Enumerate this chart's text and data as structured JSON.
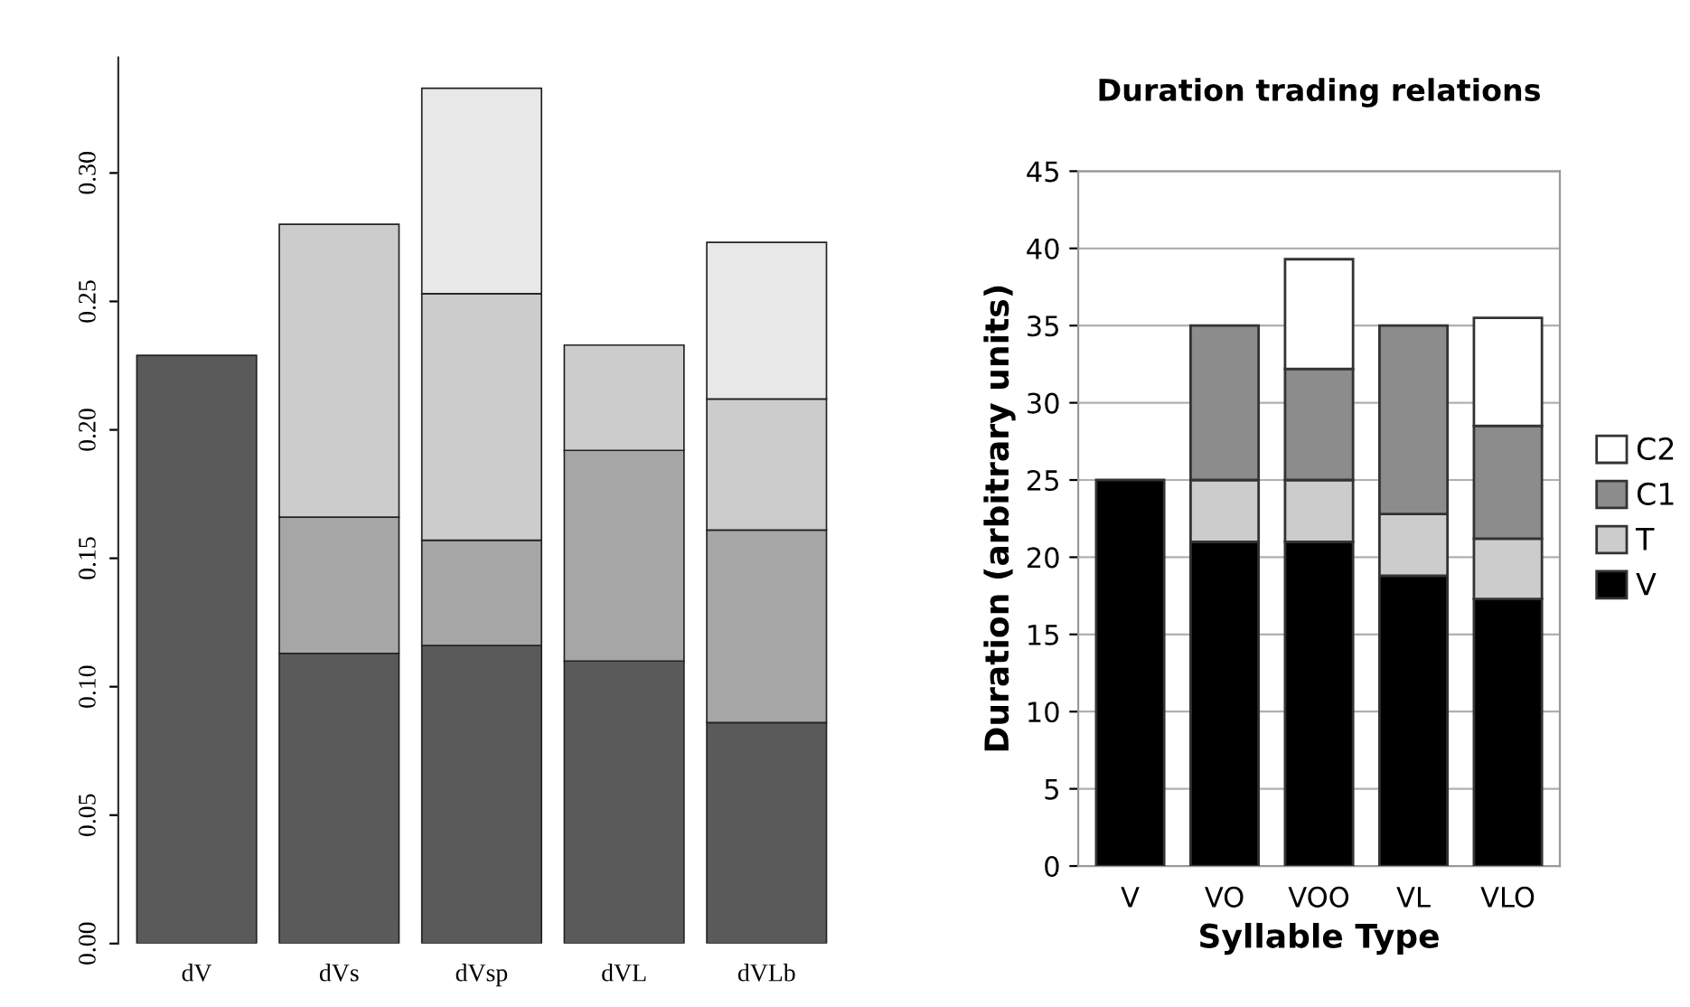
{
  "chart_data": [
    {
      "type": "bar",
      "stacked": true,
      "categories": [
        "dV",
        "dVs",
        "dVsp",
        "dVL",
        "dVLb"
      ],
      "series": [
        {
          "color": "#5a5a5a",
          "values": [
            0.229,
            0.113,
            0.116,
            0.11,
            0.086
          ]
        },
        {
          "color": "#a6a6a6",
          "values": [
            null,
            0.053,
            0.041,
            0.082,
            0.075
          ]
        },
        {
          "color": "#cccccc",
          "values": [
            null,
            0.114,
            0.096,
            0.041,
            0.051
          ]
        },
        {
          "color": "#e8e8e8",
          "values": [
            null,
            null,
            0.08,
            null,
            0.061
          ]
        }
      ],
      "ylim": [
        0,
        0.345
      ],
      "yticks": [
        {
          "value": 0,
          "label": "0.00"
        },
        {
          "value": 0.05,
          "label": "0.05"
        },
        {
          "value": 0.1,
          "label": "0.10"
        },
        {
          "value": 0.15,
          "label": "0.15"
        },
        {
          "value": 0.2,
          "label": "0.20"
        },
        {
          "value": 0.25,
          "label": "0.25"
        },
        {
          "value": 0.3,
          "label": "0.30"
        }
      ],
      "grid": false,
      "legend": false
    },
    {
      "type": "bar",
      "stacked": true,
      "title": "Duration trading relations",
      "xlabel": "Syllable Type",
      "ylabel": "Duration (arbitrary units)",
      "categories": [
        "V",
        "VO",
        "VOO",
        "VL",
        "VLO"
      ],
      "series": [
        {
          "name": "V",
          "color": "#000000",
          "values": [
            25,
            21,
            21,
            18.8,
            17.3
          ]
        },
        {
          "name": "T",
          "color": "#cccccc",
          "values": [
            null,
            4,
            4,
            4,
            3.9
          ]
        },
        {
          "name": "C1",
          "color": "#8c8c8c",
          "values": [
            null,
            10,
            7.2,
            12.2,
            7.3
          ]
        },
        {
          "name": "C2",
          "color": "#ffffff",
          "values": [
            null,
            null,
            7.1,
            null,
            7.0
          ]
        }
      ],
      "ylim": [
        0,
        45
      ],
      "yticks": [
        0,
        5,
        10,
        15,
        20,
        25,
        30,
        35,
        40,
        45
      ],
      "grid": "y",
      "legend": "right"
    }
  ]
}
